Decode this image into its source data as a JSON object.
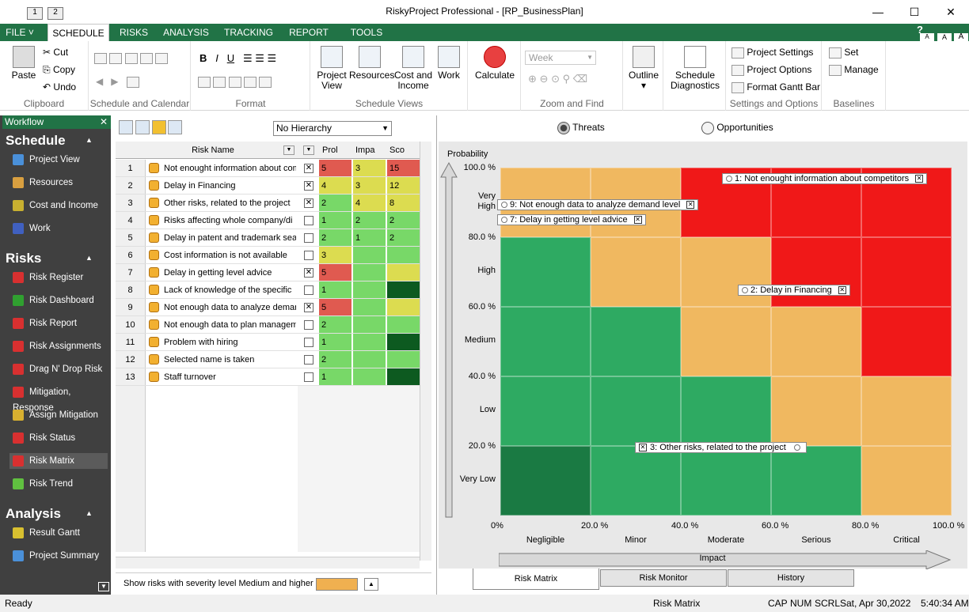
{
  "window": {
    "title": "RiskyProject Professional - [RP_BusinessPlan]",
    "min": "—",
    "max": "☐",
    "close": "✕"
  },
  "menu": {
    "file": "FILE",
    "tabs": [
      "SCHEDULE",
      "RISKS",
      "ANALYSIS",
      "TRACKING",
      "REPORT",
      "TOOLS"
    ],
    "help": [
      "?",
      "A",
      "A",
      "A"
    ]
  },
  "ribbon": {
    "clipboard": {
      "paste": "Paste",
      "cut": "Cut",
      "copy": "Copy",
      "undo": "Undo",
      "label": "Clipboard"
    },
    "schedule_calendar": {
      "label": "Schedule and Calendar"
    },
    "format": {
      "label": "Format",
      "b": "B",
      "i": "I",
      "u": "U"
    },
    "schedule_views": {
      "project": "Project View",
      "resources": "Resources",
      "cost": "Cost and Income",
      "work": "Work",
      "label": "Schedule Views"
    },
    "calculate": {
      "label": "Calculate"
    },
    "zoom": {
      "select": "Week",
      "label": "Zoom and Find"
    },
    "outline": {
      "label": "Outline"
    },
    "diagnostics": {
      "label": "Schedule Diagnostics"
    },
    "settings": {
      "ps": "Project Settings",
      "po": "Project Options",
      "fg": "Format Gantt Bar",
      "label": "Settings and Options"
    },
    "baselines": {
      "set": "Set",
      "manage": "Manage",
      "label": "Baselines"
    }
  },
  "workflow": {
    "title": "Workflow",
    "sections": [
      {
        "name": "Schedule",
        "items": [
          "Project View",
          "Resources",
          "Cost and Income",
          "Work"
        ]
      },
      {
        "name": "Risks",
        "items": [
          "Risk Register",
          "Risk Dashboard",
          "Risk Report",
          "Risk Assignments",
          "Drag N' Drop Risk",
          "Mitigation, Response",
          "Assign Mitigation",
          "Risk Status",
          "Risk Matrix",
          "Risk Trend"
        ]
      },
      {
        "name": "Analysis",
        "items": [
          "Result Gantt",
          "Project Summary"
        ]
      }
    ],
    "selected": "Risk Matrix"
  },
  "grid": {
    "hierarchy": "No Hierarchy",
    "headers": {
      "name": "Risk Name",
      "prob": "Prol",
      "impact": "Impa",
      "score": "Sco"
    },
    "rows": [
      {
        "n": "1",
        "name": "Not enought information about com",
        "chk": true,
        "p": "5",
        "i": "3",
        "s": "15",
        "pc": "#e05a50",
        "ic": "#dcdc50",
        "sc": "#e05a50"
      },
      {
        "n": "2",
        "name": "Delay in Financing",
        "chk": true,
        "p": "4",
        "i": "3",
        "s": "12",
        "pc": "#dcdc50",
        "ic": "#dcdc50",
        "sc": "#dcdc50"
      },
      {
        "n": "3",
        "name": "Other risks, related to the project",
        "chk": true,
        "p": "2",
        "i": "4",
        "s": "8",
        "pc": "#78d868",
        "ic": "#dcdc50",
        "sc": "#dcdc50"
      },
      {
        "n": "4",
        "name": "Risks affecting whole company/di",
        "chk": false,
        "p": "1",
        "i": "2",
        "s": "2",
        "pc": "#78d868",
        "ic": "#78d868",
        "sc": "#78d868"
      },
      {
        "n": "5",
        "name": "Delay in patent and trademark sea",
        "chk": false,
        "p": "2",
        "i": "1",
        "s": "2",
        "pc": "#78d868",
        "ic": "#78d868",
        "sc": "#78d868"
      },
      {
        "n": "6",
        "name": "Cost information is not available",
        "chk": false,
        "p": "3",
        "i": "",
        "s": "",
        "pc": "#dcdc50",
        "ic": "#78d868",
        "sc": "#78d868"
      },
      {
        "n": "7",
        "name": "Delay in getting level advice",
        "chk": true,
        "p": "5",
        "i": "",
        "s": "",
        "pc": "#e05a50",
        "ic": "#78d868",
        "sc": "#dcdc50"
      },
      {
        "n": "8",
        "name": "Lack of knowledge of the specific",
        "chk": false,
        "p": "1",
        "i": "",
        "s": "",
        "pc": "#78d868",
        "ic": "#78d868",
        "sc": "#0d5a20"
      },
      {
        "n": "9",
        "name": "Not enough data to analyze demar",
        "chk": true,
        "p": "5",
        "i": "",
        "s": "",
        "pc": "#e05a50",
        "ic": "#78d868",
        "sc": "#dcdc50"
      },
      {
        "n": "10",
        "name": "Not enough data to plan manageme",
        "chk": false,
        "p": "2",
        "i": "",
        "s": "",
        "pc": "#78d868",
        "ic": "#78d868",
        "sc": "#78d868"
      },
      {
        "n": "11",
        "name": "Problem with hiring",
        "chk": false,
        "p": "1",
        "i": "",
        "s": "",
        "pc": "#78d868",
        "ic": "#78d868",
        "sc": "#0d5a20"
      },
      {
        "n": "12",
        "name": "Selected name is taken",
        "chk": false,
        "p": "2",
        "i": "",
        "s": "",
        "pc": "#78d868",
        "ic": "#78d868",
        "sc": "#78d868"
      },
      {
        "n": "13",
        "name": "Staff turnover",
        "chk": false,
        "p": "1",
        "i": "",
        "s": "",
        "pc": "#78d868",
        "ic": "#78d868",
        "sc": "#0d5a20"
      }
    ],
    "footer": "Show risks with severity level Medium and higher",
    "footer_color": "#f0b050"
  },
  "matrix": {
    "radio_threats": "Threats",
    "radio_opps": "Opportunities",
    "ytitle": "Probability",
    "yticks": [
      "100.0 %",
      "80.0 %",
      "60.0 %",
      "40.0 %",
      "20.0 %"
    ],
    "ycats": [
      "Very High",
      "High",
      "Medium",
      "Low",
      "Very Low"
    ],
    "xticks": [
      "0%",
      "20.0 %",
      "40.0 %",
      "60.0 %",
      "80.0 %",
      "100.0 %"
    ],
    "xcats": [
      "Negligible",
      "Minor",
      "Moderate",
      "Serious",
      "Critical"
    ],
    "xtitle": "Impact",
    "colors": {
      "dg": "#1a7a43",
      "g": "#2eaa62",
      "o": "#f0b860",
      "r": "#f01818"
    },
    "grid": [
      [
        "o",
        "o",
        "r",
        "r",
        "r"
      ],
      [
        "g",
        "o",
        "o",
        "r",
        "r"
      ],
      [
        "g",
        "g",
        "o",
        "o",
        "r"
      ],
      [
        "g",
        "g",
        "g",
        "o",
        "o"
      ],
      [
        "dg",
        "g",
        "g",
        "g",
        "o"
      ]
    ],
    "labels": [
      {
        "text": "1: Not enought information about competitors"
      },
      {
        "text": "9: Not enough data to analyze demand level"
      },
      {
        "text": "7: Delay in getting level advice"
      },
      {
        "text": "2: Delay in Financing"
      },
      {
        "text": "3: Other risks, related to the project"
      }
    ],
    "tabs": [
      "Risk Matrix",
      "Risk Monitor",
      "History"
    ]
  },
  "status": {
    "left": "Ready",
    "mid": "Risk Matrix",
    "caps": "CAP",
    "num": "NUM",
    "scrl": "SCRL",
    "date": "Sat, Apr 30,2022",
    "time": "5:40:34 AM"
  }
}
